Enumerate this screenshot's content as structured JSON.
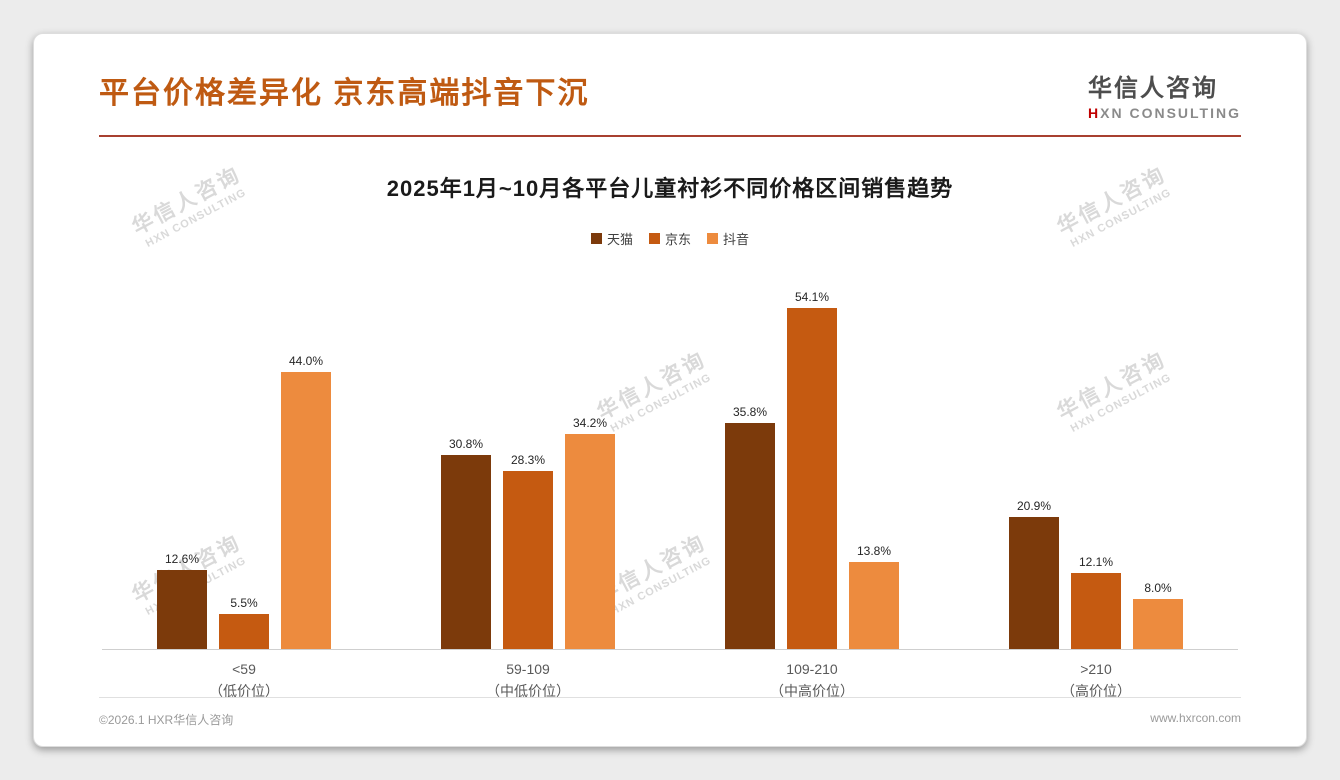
{
  "header": {
    "title": "平台价格差异化 京东高端抖音下沉",
    "logo": {
      "cn": "华信人咨询",
      "en_first": "H",
      "en_rest": "XN CONSULTING"
    }
  },
  "watermark": {
    "line1": "华信人咨询",
    "line2": "HXN CONSULTING"
  },
  "chart_data": {
    "type": "bar",
    "title": "2025年1月~10月各平台儿童衬衫不同价格区间销售趋势",
    "unit": "%",
    "ylim": [
      0,
      60
    ],
    "grid": false,
    "legend_position": "top",
    "categories": [
      {
        "range": "<59",
        "tier": "（低价位）"
      },
      {
        "range": "59-109",
        "tier": "（中低价位）"
      },
      {
        "range": "109-210",
        "tier": "（中高价位）"
      },
      {
        "range": ">210",
        "tier": "（高价位）"
      }
    ],
    "series": [
      {
        "name": "天猫",
        "color": "#7C3A0B",
        "values": [
          12.6,
          30.8,
          35.8,
          20.9
        ]
      },
      {
        "name": "京东",
        "color": "#C55A11",
        "values": [
          5.5,
          28.3,
          54.1,
          12.1
        ]
      },
      {
        "name": "抖音",
        "color": "#ED8B3E",
        "values": [
          44.0,
          34.2,
          13.8,
          8.0
        ]
      }
    ]
  },
  "footer": {
    "copyright": "©2026.1 HXR华信人咨询",
    "website": "www.hxrcon.com"
  }
}
